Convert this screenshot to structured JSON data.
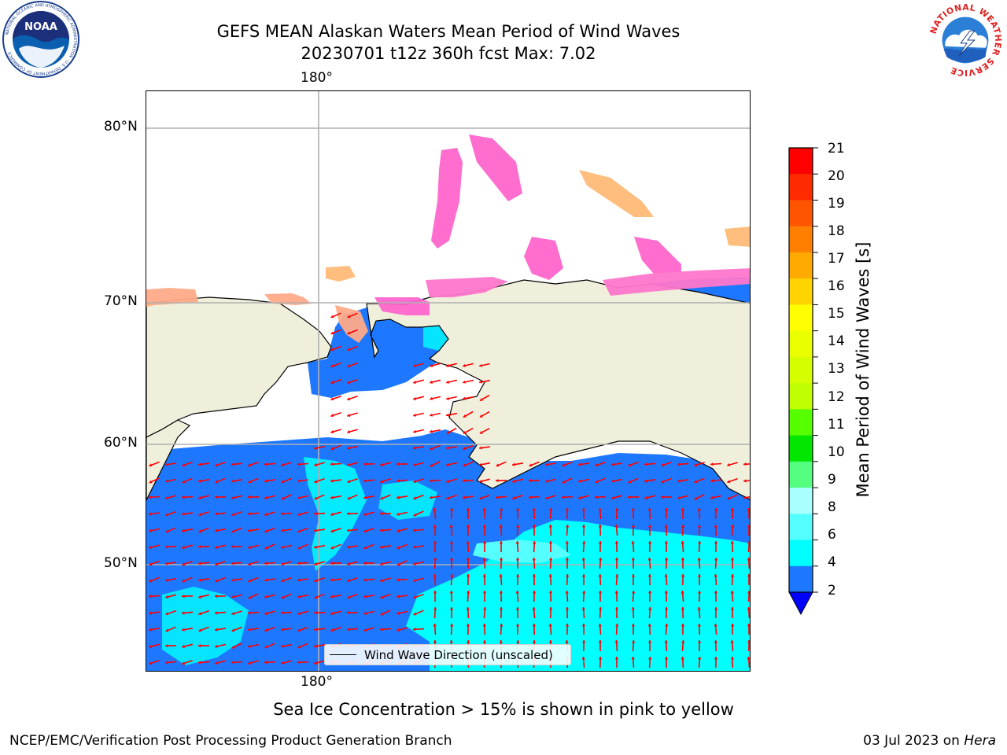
{
  "header": {
    "title_line1": "GEFS MEAN Alaskan Waters Mean Period of Wind Waves",
    "title_line2": "20230701 t12z 360h fcst   Max: 7.02"
  },
  "logos": {
    "left": {
      "name": "noaa-logo",
      "text": "NOAA",
      "ring_text": "NATIONAL OCEANIC AND ATMOSPHERIC ADMINISTRATION · U.S. DEPARTMENT OF COMMERCE"
    },
    "right": {
      "name": "nws-logo",
      "ring_text": "NATIONAL WEATHER SERVICE"
    }
  },
  "map": {
    "top_lon_label": "180°",
    "bottom_lon_label": "180°",
    "lat_labels": [
      "80°N",
      "70°N",
      "60°N",
      "50°N"
    ],
    "legend_text": "Wind Wave Direction (unscaled)",
    "arrow_color": "#ff0000",
    "ocean_colors": {
      "2-4": "#1e78ff",
      "4-6": "#00ffff"
    },
    "sea_ice_colors": [
      "#ff66cc",
      "#ff99cc",
      "#ffcc66",
      "#ffff66",
      "#0000ff"
    ],
    "land_color": "#efefdc",
    "grid_color": "#b0b0b0"
  },
  "colorbar": {
    "title": "Mean Period of Wind Waves [s]",
    "tick_labels": [
      "21",
      "20",
      "19",
      "18",
      "17",
      "16",
      "15",
      "14",
      "13",
      "12",
      "11",
      "10",
      "9",
      "8",
      "6",
      "4",
      "2"
    ],
    "colors_top_to_bottom": [
      "#ff0000",
      "#ff2b00",
      "#ff5500",
      "#ff8000",
      "#ffaa00",
      "#ffd400",
      "#ffff00",
      "#eaff00",
      "#d5ff00",
      "#c0ff00",
      "#55ff00",
      "#00e600",
      "#55ff80",
      "#aaffff",
      "#55ffff",
      "#00ffff",
      "#1e78ff"
    ],
    "extend_color": "#0000ff"
  },
  "footnote": "Sea Ice Concentration > 15% is shown in pink to yellow",
  "credits": {
    "left": "NCEP/EMC/Verification Post Processing Product Generation Branch",
    "right_date": "03 Jul 2023 on",
    "right_host": "Hera"
  }
}
